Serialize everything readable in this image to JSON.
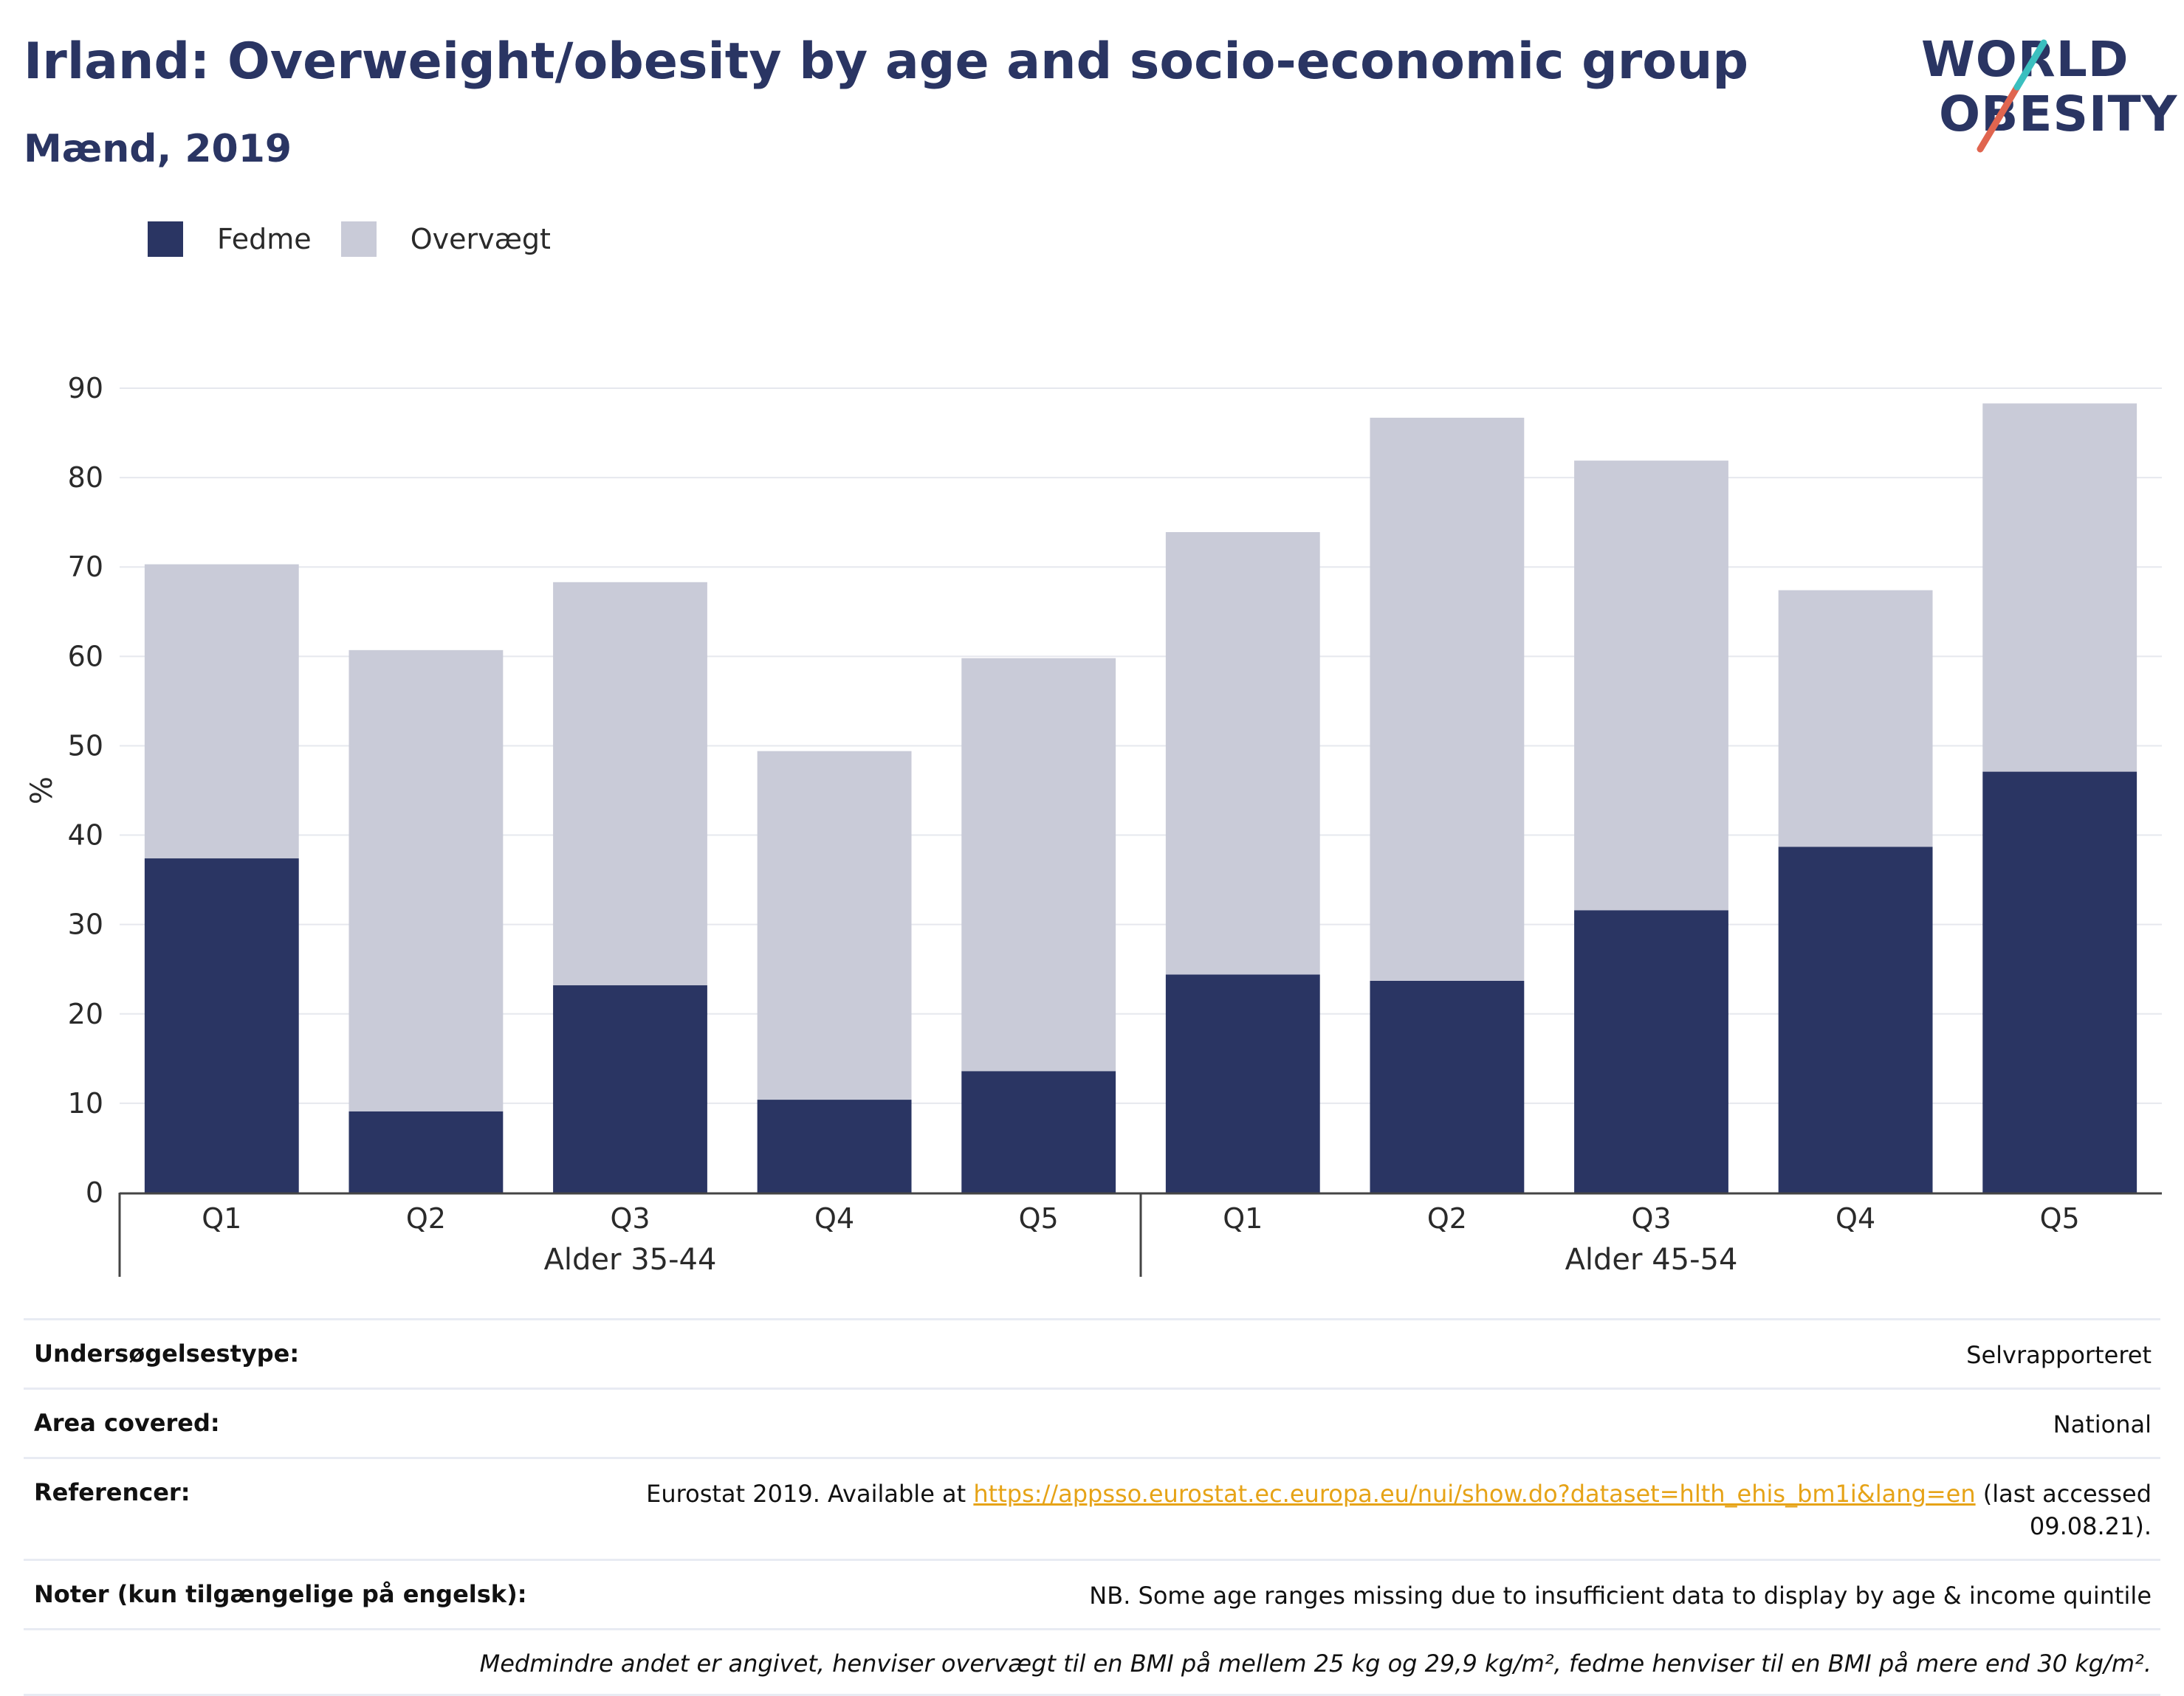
{
  "header": {
    "title": "Irland: Overweight/obesity by age and socio-economic group",
    "subtitle": "Mænd, 2019"
  },
  "logo": {
    "line1": "WORLD",
    "line2": "OBESITY"
  },
  "colors": {
    "fedme": "#2a3563",
    "overvaegt": "#c9cbd8",
    "accent_red": "#e0654f",
    "accent_teal": "#3bbfbf"
  },
  "chart_data": {
    "type": "bar",
    "stacked": true,
    "ylabel": "%",
    "ylim": [
      0,
      90
    ],
    "yticks": [
      0,
      10,
      20,
      30,
      40,
      50,
      60,
      70,
      80,
      90
    ],
    "grid": true,
    "legend_position": "top-left",
    "groups": [
      {
        "label": "Alder 35-44",
        "categories": [
          "Q1",
          "Q2",
          "Q3",
          "Q4",
          "Q5"
        ]
      },
      {
        "label": "Alder 45-54",
        "categories": [
          "Q1",
          "Q2",
          "Q3",
          "Q4",
          "Q5"
        ]
      }
    ],
    "series": [
      {
        "name": "Fedme",
        "color": "#2a3563",
        "values": [
          37.4,
          9.1,
          23.2,
          10.4,
          13.6,
          24.4,
          23.7,
          31.6,
          38.7,
          47.1
        ]
      },
      {
        "name": "Overvægt",
        "color": "#c9cbd8",
        "values": [
          32.9,
          51.6,
          45.1,
          39.0,
          46.2,
          49.5,
          63.0,
          50.3,
          28.7,
          41.2
        ]
      }
    ]
  },
  "meta": {
    "survey_label": "Undersøgelsestype:",
    "survey_value": "Selvrapporteret",
    "area_label": "Area covered:",
    "area_value": "National",
    "ref_label": "Referencer:",
    "ref_prefix": "Eurostat 2019. Available at ",
    "ref_link": "https://appsso.eurostat.ec.europa.eu/nui/show.do?dataset=hlth_ehis_bm1i&lang=en",
    "ref_suffix": " (last accessed 09.08.21).",
    "notes_label": "Noter (kun tilgængelige på engelsk):",
    "notes_value": "NB. Some age ranges missing due to insufficient data to display by age & income quintile",
    "footnote": "Medmindre andet er angivet, henviser overvægt til en BMI på mellem 25 kg og 29,9 kg/m², fedme henviser til en BMI på mere end 30 kg/m²."
  }
}
